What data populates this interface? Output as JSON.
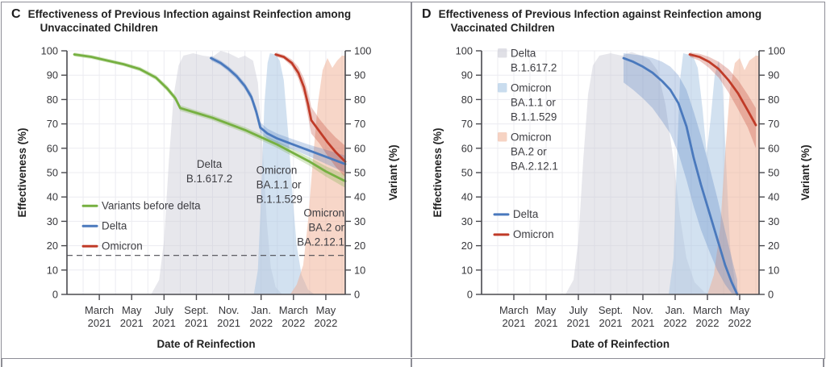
{
  "chart_data": [
    {
      "type": "line",
      "panel_label": "C",
      "title": "Effectiveness of Previous Infection against Reinfection among",
      "subtitle": "Unvaccinated Children",
      "xlabel": "Date of Reinfection",
      "ylabel": "Effectiveness (%)",
      "y2label": "Variant (%)",
      "ylim": [
        0,
        100
      ],
      "xlim_months": [
        0,
        17.2
      ],
      "x_unit": "months since Jan 2021",
      "grid": true,
      "yticks": [
        0,
        10,
        20,
        30,
        40,
        50,
        60,
        70,
        80,
        90,
        100
      ],
      "xticks": [
        {
          "pos": 2,
          "month": "March",
          "year": "2021"
        },
        {
          "pos": 4,
          "month": "May",
          "year": "2021"
        },
        {
          "pos": 6,
          "month": "July",
          "year": "2021"
        },
        {
          "pos": 8,
          "month": "Sept.",
          "year": "2021"
        },
        {
          "pos": 10,
          "month": "Nov.",
          "year": "2021"
        },
        {
          "pos": 12,
          "month": "Jan.",
          "year": "2022"
        },
        {
          "pos": 14,
          "month": "March",
          "year": "2022"
        },
        {
          "pos": 16,
          "month": "May",
          "year": "2022"
        }
      ],
      "dashed_line_y": 16,
      "variant_share_areas": [
        {
          "name": "Delta B.1.617.2",
          "color": "#c6c6d2",
          "opacity": 0.42,
          "points": [
            [
              5.2,
              0
            ],
            [
              5.7,
              6
            ],
            [
              6.0,
              22
            ],
            [
              6.3,
              55
            ],
            [
              6.6,
              82
            ],
            [
              6.9,
              94
            ],
            [
              7.2,
              98
            ],
            [
              7.8,
              99
            ],
            [
              8.4,
              98
            ],
            [
              9.0,
              97.5
            ],
            [
              9.5,
              100
            ],
            [
              10.0,
              99
            ],
            [
              10.6,
              97
            ],
            [
              11.0,
              98
            ],
            [
              11.5,
              96
            ],
            [
              11.8,
              87
            ],
            [
              12.1,
              60
            ],
            [
              12.35,
              30
            ],
            [
              12.6,
              11
            ],
            [
              12.9,
              3
            ],
            [
              13.3,
              0
            ]
          ]
        },
        {
          "name": "Omicron BA.1.1 or B.1.1.529",
          "color": "#a5c4e2",
          "opacity": 0.5,
          "points": [
            [
              11.55,
              0
            ],
            [
              11.8,
              10
            ],
            [
              12.0,
              40
            ],
            [
              12.2,
              78
            ],
            [
              12.4,
              95
            ],
            [
              12.55,
              99
            ],
            [
              12.9,
              98.5
            ],
            [
              13.15,
              96
            ],
            [
              13.4,
              88
            ],
            [
              13.7,
              64
            ],
            [
              13.95,
              40
            ],
            [
              14.2,
              20
            ],
            [
              14.5,
              8
            ],
            [
              14.9,
              2
            ],
            [
              15.3,
              0
            ]
          ]
        },
        {
          "name": "Omicron BA.2 or BA.2.12.1",
          "color": "#efae92",
          "opacity": 0.5,
          "points": [
            [
              13.8,
              0
            ],
            [
              14.2,
              4
            ],
            [
              14.6,
              12
            ],
            [
              14.9,
              30
            ],
            [
              15.2,
              55
            ],
            [
              15.5,
              78
            ],
            [
              15.8,
              92
            ],
            [
              16.1,
              97
            ],
            [
              16.4,
              93
            ],
            [
              16.7,
              96
            ],
            [
              17.0,
              98
            ],
            [
              17.2,
              98
            ]
          ]
        }
      ],
      "series": [
        {
          "name": "Variants before delta",
          "color": "#76b041",
          "x": [
            0.45,
            1.5,
            2.5,
            3.5,
            4.5,
            5.5,
            6.2,
            6.7,
            7.0,
            8,
            9,
            10,
            11,
            12,
            13,
            14,
            15,
            16,
            17.2
          ],
          "y": [
            98.5,
            97.5,
            96,
            94.5,
            92.5,
            89,
            84.5,
            80.5,
            76.5,
            74.5,
            72.5,
            70,
            67.5,
            64.5,
            61.5,
            58,
            54.5,
            50.5,
            46.5
          ],
          "ci_upper": [
            99.3,
            98.3,
            96.8,
            95.3,
            93.4,
            90,
            85.7,
            81.7,
            77.7,
            75.6,
            73.6,
            71.2,
            68.7,
            65.8,
            62.9,
            59.5,
            56.2,
            52.6,
            49.2
          ],
          "ci_lower": [
            97.7,
            96.7,
            95.2,
            93.7,
            91.6,
            88,
            83.3,
            79.3,
            75.3,
            73.4,
            71.4,
            68.8,
            66.3,
            63.2,
            60.1,
            56.5,
            52.8,
            48.4,
            43.8
          ]
        },
        {
          "name": "Delta",
          "color": "#4a79bd",
          "x": [
            8.9,
            9.5,
            10,
            10.5,
            11,
            11.4,
            11.7,
            11.95,
            12.4,
            13,
            14,
            15,
            16,
            17.2
          ],
          "y": [
            97,
            95,
            92.5,
            89.5,
            85.5,
            81,
            75,
            68.5,
            66,
            64,
            61.5,
            59,
            56.5,
            53.5
          ],
          "ci_upper": [
            98,
            96,
            93.6,
            90.7,
            86.8,
            82.6,
            77,
            70.6,
            68,
            66,
            63.6,
            61.4,
            59.4,
            57
          ],
          "ci_lower": [
            96,
            94,
            91.4,
            88.3,
            84.2,
            79.4,
            73,
            66.4,
            64,
            62,
            59.4,
            56.6,
            53.6,
            50
          ]
        },
        {
          "name": "Omicron",
          "color": "#c03b28",
          "x": [
            12.9,
            13.4,
            13.9,
            14.3,
            14.65,
            14.9,
            15.1,
            15.6,
            16.1,
            16.6,
            17.2
          ],
          "y": [
            98.5,
            97.5,
            95,
            91,
            85,
            78,
            71.5,
            67,
            62.5,
            58.5,
            54.5
          ],
          "ci_upper": [
            99.3,
            98.4,
            96.4,
            93.4,
            88.6,
            83,
            77,
            72,
            68,
            64.5,
            61
          ],
          "ci_lower": [
            97.7,
            96.6,
            93.6,
            88.6,
            81.4,
            73,
            66,
            62,
            57,
            52.5,
            48
          ]
        }
      ],
      "annotations": [
        {
          "x_month": 8.8,
          "y_value": 52,
          "align": "center",
          "lines": [
            "Delta",
            "B.1.617.2"
          ]
        },
        {
          "x_month": 11.7,
          "y_value": 49.5,
          "align": "left",
          "lines": [
            "Omicron",
            "BA.1.1 or",
            "B.1.1.529"
          ]
        },
        {
          "x_month": 17.15,
          "y_value": 32,
          "align": "right",
          "lines": [
            "Omicron",
            "BA.2 or",
            "BA.2.12.1"
          ]
        }
      ],
      "legends": [
        {
          "style": "line",
          "x_month": 1.0,
          "y_value": 35,
          "items": [
            {
              "color": "#76b041",
              "lines": [
                "Variants before delta"
              ]
            },
            {
              "color": "#4a79bd",
              "lines": [
                "Delta"
              ]
            },
            {
              "color": "#c03b28",
              "lines": [
                "Omicron"
              ]
            }
          ]
        }
      ]
    },
    {
      "type": "line",
      "panel_label": "D",
      "title": "Effectiveness of Previous Infection against Reinfection among",
      "subtitle": "Vaccinated Children",
      "xlabel": "Date of Reinfection",
      "ylabel": "Effectiveness (%)",
      "y2label": "Variant (%)",
      "ylim": [
        0,
        100
      ],
      "xlim_months": [
        0,
        17.2
      ],
      "x_unit": "months since Jan 2021",
      "grid": true,
      "yticks": [
        0,
        10,
        20,
        30,
        40,
        50,
        60,
        70,
        80,
        90,
        100
      ],
      "xticks": [
        {
          "pos": 2,
          "month": "March",
          "year": "2021"
        },
        {
          "pos": 4,
          "month": "May",
          "year": "2021"
        },
        {
          "pos": 6,
          "month": "July",
          "year": "2021"
        },
        {
          "pos": 8,
          "month": "Sept.",
          "year": "2021"
        },
        {
          "pos": 10,
          "month": "Nov.",
          "year": "2021"
        },
        {
          "pos": 12,
          "month": "Jan.",
          "year": "2022"
        },
        {
          "pos": 14,
          "month": "March",
          "year": "2022"
        },
        {
          "pos": 16,
          "month": "May",
          "year": "2022"
        }
      ],
      "dashed_line_y": null,
      "variant_share_areas": [
        {
          "name": "Delta B.1.617.2",
          "color": "#c6c6d2",
          "opacity": 0.42,
          "points": [
            [
              5.2,
              0
            ],
            [
              5.7,
              6
            ],
            [
              6.0,
              22
            ],
            [
              6.3,
              55
            ],
            [
              6.6,
              82
            ],
            [
              6.9,
              94
            ],
            [
              7.3,
              98
            ],
            [
              8.0,
              99
            ],
            [
              8.7,
              98
            ],
            [
              9.3,
              99.5
            ],
            [
              9.9,
              98
            ],
            [
              10.4,
              96.5
            ],
            [
              10.9,
              92
            ],
            [
              11.4,
              78
            ],
            [
              11.9,
              55
            ],
            [
              12.3,
              32
            ],
            [
              12.7,
              15
            ],
            [
              13.2,
              5
            ],
            [
              13.8,
              1
            ],
            [
              14.3,
              0
            ]
          ]
        },
        {
          "name": "Omicron BA.1.1 or B.1.1.529",
          "color": "#a5c4e2",
          "opacity": 0.5,
          "points": [
            [
              11.6,
              0
            ],
            [
              11.9,
              15
            ],
            [
              12.1,
              55
            ],
            [
              12.3,
              88
            ],
            [
              12.5,
              99
            ],
            [
              13.1,
              98
            ],
            [
              13.4,
              93
            ],
            [
              13.7,
              76
            ],
            [
              13.95,
              58
            ],
            [
              14.2,
              72
            ],
            [
              14.45,
              90
            ],
            [
              14.7,
              96
            ],
            [
              14.95,
              85
            ],
            [
              15.15,
              55
            ],
            [
              15.4,
              20
            ],
            [
              15.7,
              5
            ],
            [
              16.0,
              0
            ]
          ]
        },
        {
          "name": "Omicron BA.2 or BA.2.12.1",
          "color": "#efae92",
          "opacity": 0.5,
          "points": [
            [
              14.0,
              0
            ],
            [
              14.4,
              8
            ],
            [
              14.8,
              28
            ],
            [
              15.1,
              58
            ],
            [
              15.4,
              84
            ],
            [
              15.7,
              95
            ],
            [
              16.0,
              97
            ],
            [
              16.3,
              92
            ],
            [
              16.6,
              96
            ],
            [
              17.0,
              98
            ],
            [
              17.2,
              98
            ]
          ]
        }
      ],
      "series": [
        {
          "name": "Delta",
          "color": "#4a79bd",
          "x": [
            8.8,
            9.4,
            10,
            10.6,
            11.2,
            11.7,
            12.2,
            12.7,
            13.15,
            13.6,
            14.1,
            14.6,
            15.1,
            15.5,
            15.85
          ],
          "y": [
            97,
            95.5,
            93.5,
            91,
            87.5,
            84,
            78.5,
            69,
            56,
            45,
            34,
            23,
            12,
            5,
            0
          ],
          "ci_upper": [
            99,
            98.5,
            98,
            97,
            95.5,
            93.5,
            90,
            84,
            75,
            65,
            53,
            40,
            26,
            15,
            6
          ],
          "ci_lower": [
            87,
            84,
            80.5,
            76.5,
            71,
            66,
            58,
            47,
            36,
            26.5,
            18,
            10,
            4,
            0.5,
            0
          ]
        },
        {
          "name": "Omicron",
          "color": "#c03b28",
          "x": [
            12.9,
            13.5,
            14.1,
            14.7,
            15.3,
            15.9,
            16.5,
            17.0
          ],
          "y": [
            98.5,
            97.5,
            95.5,
            92.5,
            88,
            82.5,
            75.5,
            69.5
          ],
          "ci_upper": [
            99.3,
            98.8,
            97.5,
            95.5,
            92.5,
            88,
            82,
            76.5
          ],
          "ci_lower": [
            97.5,
            96,
            93,
            89,
            83,
            76,
            68.5,
            60
          ]
        }
      ],
      "annotations": [],
      "legends": [
        {
          "style": "box",
          "x_month": 1.0,
          "y_value": 97.5,
          "items": [
            {
              "color": "#c6c6d2",
              "opacity": 0.55,
              "lines": [
                "Delta",
                "B.1.617.2"
              ]
            },
            {
              "color": "#a5c4e2",
              "opacity": 0.6,
              "lines": [
                "Omicron",
                "BA.1.1 or",
                "B.1.1.529"
              ]
            },
            {
              "color": "#efae92",
              "opacity": 0.55,
              "lines": [
                "Omicron",
                "BA.2 or",
                "BA.2.12.1"
              ]
            }
          ]
        },
        {
          "style": "line",
          "x_month": 0.8,
          "y_value": 31.5,
          "items": [
            {
              "color": "#4a79bd",
              "lines": [
                "Delta"
              ]
            },
            {
              "color": "#c03b28",
              "lines": [
                "Omicron"
              ]
            }
          ]
        }
      ]
    }
  ],
  "colors": {
    "pre_delta_line": "#76b041",
    "delta_line": "#4a79bd",
    "omicron_line": "#c03b28",
    "delta_area": "#e7e7ec",
    "ba11_area": "#d2e2f1",
    "ba2_area": "#f7d7c9",
    "axis": "#4a4a4f",
    "border": "#8e8e96"
  }
}
